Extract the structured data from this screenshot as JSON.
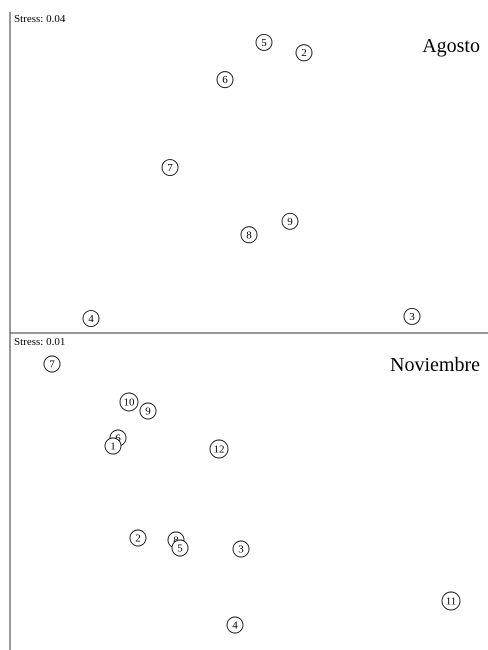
{
  "chart_data": [
    {
      "type": "scatter",
      "stress_label": "Stress: 0.04",
      "title": "Agosto",
      "xlim": [
        0,
        488
      ],
      "ylim": [
        0,
        322
      ],
      "points": [
        {
          "label": "5",
          "x": 264,
          "y": 41
        },
        {
          "label": "2",
          "x": 304,
          "y": 51
        },
        {
          "label": "6",
          "x": 225,
          "y": 77
        },
        {
          "label": "7",
          "x": 170,
          "y": 162
        },
        {
          "label": "9",
          "x": 290,
          "y": 214
        },
        {
          "label": "8",
          "x": 249,
          "y": 227
        },
        {
          "label": "4",
          "x": 91,
          "y": 308
        },
        {
          "label": "3",
          "x": 412,
          "y": 306
        }
      ]
    },
    {
      "type": "scatter",
      "stress_label": "Stress: 0.01",
      "title": "Noviembre",
      "xlim": [
        0,
        488
      ],
      "ylim": [
        0,
        317
      ],
      "points": [
        {
          "label": "7",
          "x": 52,
          "y": 31
        },
        {
          "label": "10",
          "x": 129,
          "y": 69
        },
        {
          "label": "9",
          "x": 148,
          "y": 78
        },
        {
          "label": "6",
          "x": 118,
          "y": 105
        },
        {
          "label": "1",
          "x": 113,
          "y": 113
        },
        {
          "label": "12",
          "x": 219,
          "y": 116
        },
        {
          "label": "2",
          "x": 138,
          "y": 205
        },
        {
          "label": "8",
          "x": 176,
          "y": 207
        },
        {
          "label": "5",
          "x": 180,
          "y": 215
        },
        {
          "label": "3",
          "x": 241,
          "y": 216
        },
        {
          "label": "11",
          "x": 451,
          "y": 268
        },
        {
          "label": "4",
          "x": 235,
          "y": 292
        }
      ]
    }
  ]
}
